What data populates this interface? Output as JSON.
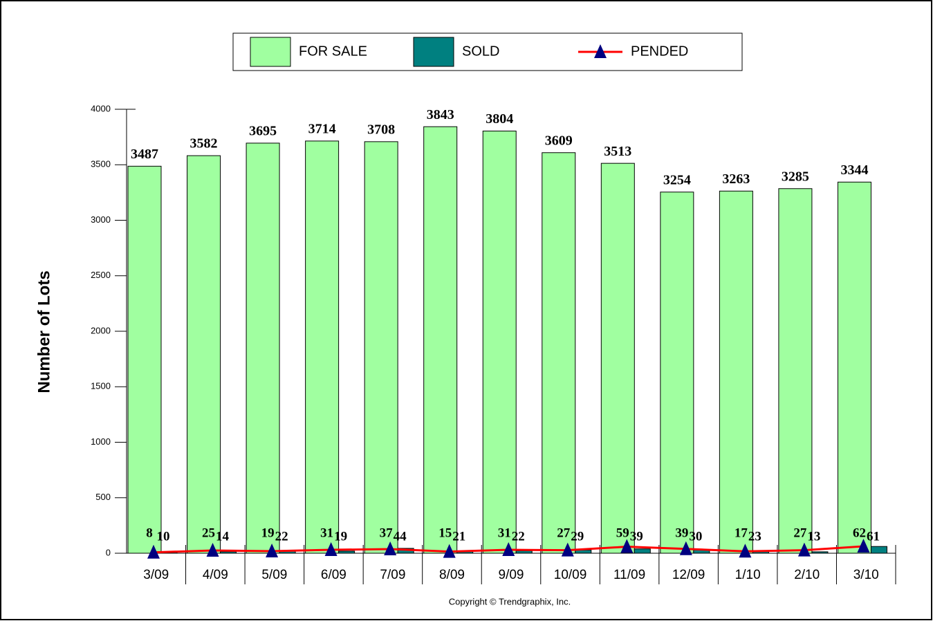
{
  "chart_data": {
    "type": "bar",
    "ylabel": "Number of Lots",
    "footnote": "Copyright © Trendgraphix, Inc.",
    "categories": [
      "3/09",
      "4/09",
      "5/09",
      "6/09",
      "7/09",
      "8/09",
      "9/09",
      "10/09",
      "11/09",
      "12/09",
      "1/10",
      "2/10",
      "3/10"
    ],
    "series": [
      {
        "name": "FOR SALE",
        "type": "bar",
        "color": "#a0ffa0",
        "values": [
          3487,
          3582,
          3695,
          3714,
          3708,
          3843,
          3804,
          3609,
          3513,
          3254,
          3263,
          3285,
          3344
        ]
      },
      {
        "name": "SOLD",
        "type": "bar",
        "color": "#008080",
        "values": [
          10,
          14,
          22,
          19,
          44,
          21,
          22,
          29,
          39,
          30,
          23,
          13,
          61
        ]
      },
      {
        "name": "PENDED",
        "type": "line",
        "color": "#ff0000",
        "marker_color": "#000080",
        "values": [
          8,
          25,
          19,
          31,
          37,
          15,
          31,
          27,
          59,
          39,
          17,
          27,
          62
        ]
      }
    ],
    "ylim": [
      0,
      4000
    ],
    "yticks": [
      0,
      500,
      1000,
      1500,
      2000,
      2500,
      3000,
      3500,
      4000
    ]
  }
}
